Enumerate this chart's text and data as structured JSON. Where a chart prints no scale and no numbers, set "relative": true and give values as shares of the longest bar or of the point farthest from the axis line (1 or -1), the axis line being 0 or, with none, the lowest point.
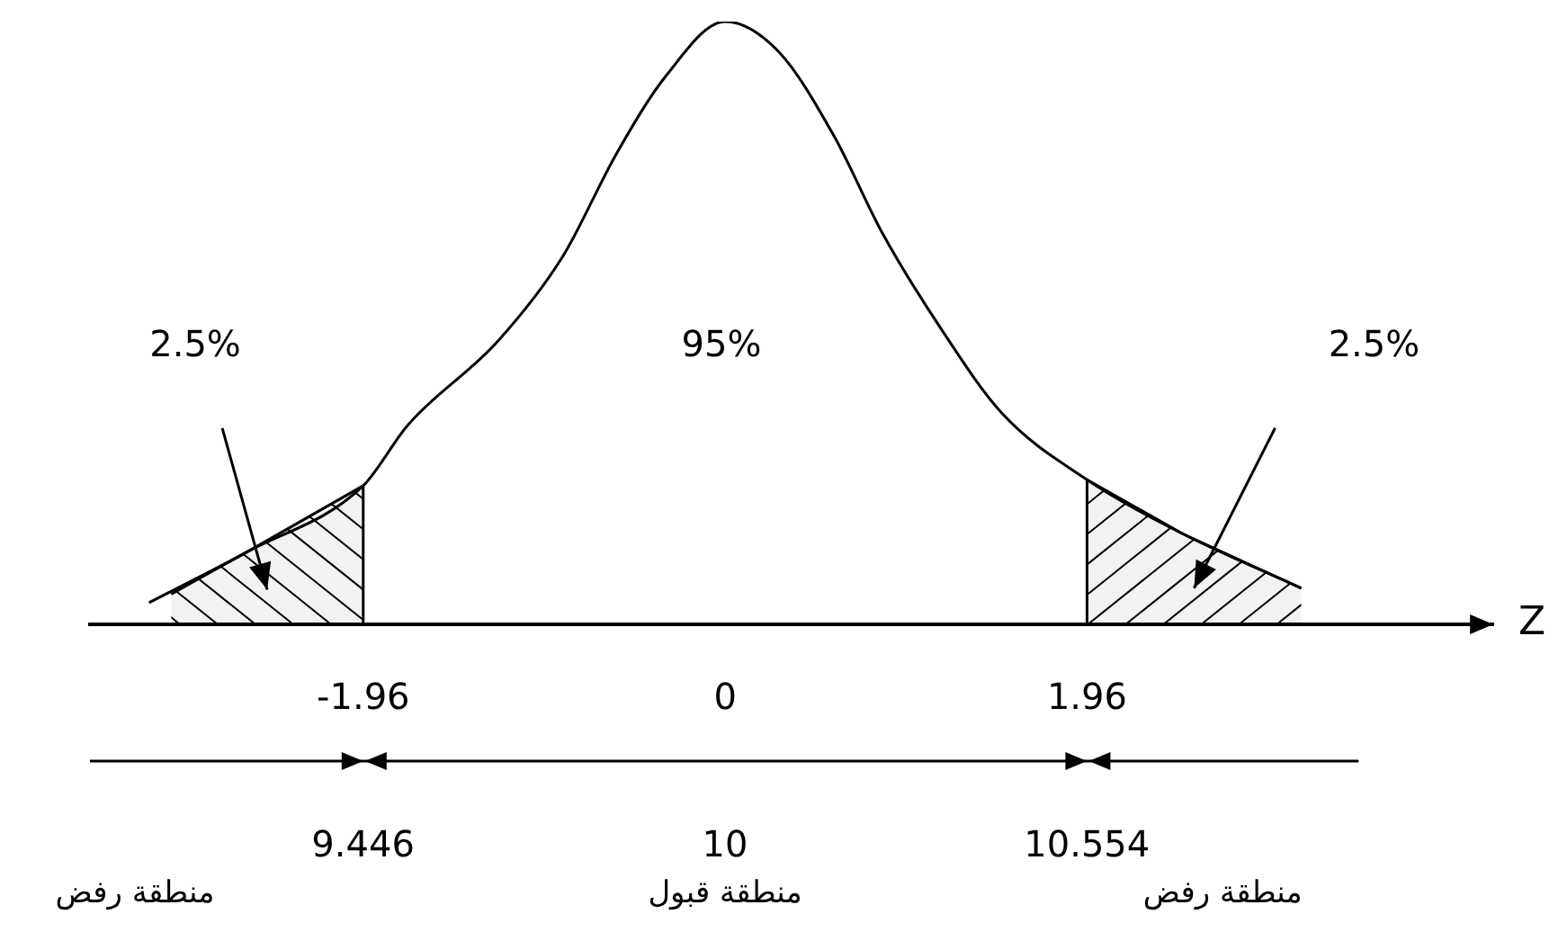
{
  "chart_data": {
    "type": "line",
    "relative": true,
    "xlabel": "Z",
    "marker": "none",
    "grid": false,
    "legend": false,
    "xlim": [
      -3.44,
      4.16
    ],
    "xticks": [
      -1.96,
      0,
      1.96
    ],
    "x2lim": [
      9.028,
      11.176
    ],
    "x2ticks": [
      9.446,
      10,
      10.554
    ],
    "series": [
      {
        "color": "#000000",
        "x": [
          -3.12,
          -2.59,
          -1.96,
          -1.72,
          -1.23,
          -0.88,
          -0.59,
          -0.32,
          0,
          0.29,
          0.59,
          0.85,
          1.17,
          1.5,
          1.96,
          2.48,
          3.12
        ],
        "values": [
          0.036,
          0.12,
          0.23,
          0.33,
          0.47,
          0.61,
          0.78,
          0.91,
          1,
          0.95,
          0.81,
          0.65,
          0.49,
          0.35,
          0.24,
          0.15,
          0.06
        ]
      },
      {
        "type": "area",
        "color": "#000000",
        "x": [
          -3.0,
          -2.59,
          -1.96,
          -1.96
        ],
        "values": [
          0.05,
          0.12,
          0.23,
          0
        ]
      },
      {
        "type": "area",
        "color": "#000000",
        "x": [
          1.96,
          1.96,
          2.48,
          3.12
        ],
        "values": [
          0,
          0.24,
          0.15,
          0.06
        ]
      }
    ],
    "annotations": [
      "2.5%",
      "95%",
      "2.5%",
      "منطقة رفض",
      "منطقة قبول",
      "منطقة رفض"
    ]
  }
}
